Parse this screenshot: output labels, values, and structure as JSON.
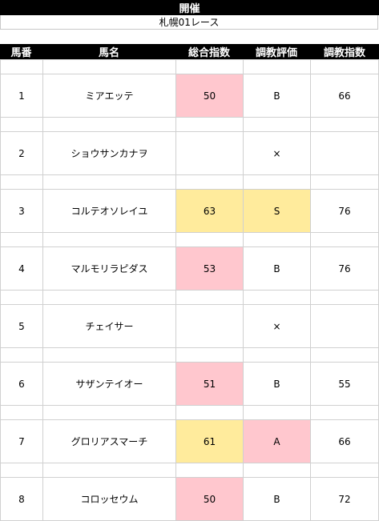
{
  "sheet": {
    "title": "開催",
    "race_name": "札幌01レース",
    "columns": [
      "馬番",
      "馬名",
      "総合指数",
      "調教評価",
      "調教指数"
    ],
    "rows": [
      {
        "no": "1",
        "name": "ミアエッテ",
        "index": "50",
        "eval": "B",
        "train_index": "66",
        "index_style": "pink",
        "eval_style": ""
      },
      {
        "no": "2",
        "name": "ショウサンカナヲ",
        "index": "",
        "eval": "×",
        "train_index": "",
        "index_style": "",
        "eval_style": ""
      },
      {
        "no": "3",
        "name": "コルテオソレイユ",
        "index": "63",
        "eval": "S",
        "train_index": "76",
        "index_style": "yellow",
        "eval_style": "yellow"
      },
      {
        "no": "4",
        "name": "マルモリラピダス",
        "index": "53",
        "eval": "B",
        "train_index": "76",
        "index_style": "pink",
        "eval_style": ""
      },
      {
        "no": "5",
        "name": "チェイサー",
        "index": "",
        "eval": "×",
        "train_index": "",
        "index_style": "",
        "eval_style": ""
      },
      {
        "no": "6",
        "name": "サザンテイオー",
        "index": "51",
        "eval": "B",
        "train_index": "55",
        "index_style": "pink",
        "eval_style": ""
      },
      {
        "no": "7",
        "name": "グロリアスマーチ",
        "index": "61",
        "eval": "A",
        "train_index": "66",
        "index_style": "yellow",
        "eval_style": "pink"
      },
      {
        "no": "8",
        "name": "コロッセウム",
        "index": "50",
        "eval": "B",
        "train_index": "72",
        "index_style": "pink",
        "eval_style": ""
      }
    ]
  },
  "colors": {
    "header_bg": "#000000",
    "header_text": "#ffffff",
    "pink_fill": "#ffc7ce",
    "pink_text": "#9c0006",
    "yellow_fill": "#ffeb9c",
    "yellow_text": "#9c5700"
  }
}
